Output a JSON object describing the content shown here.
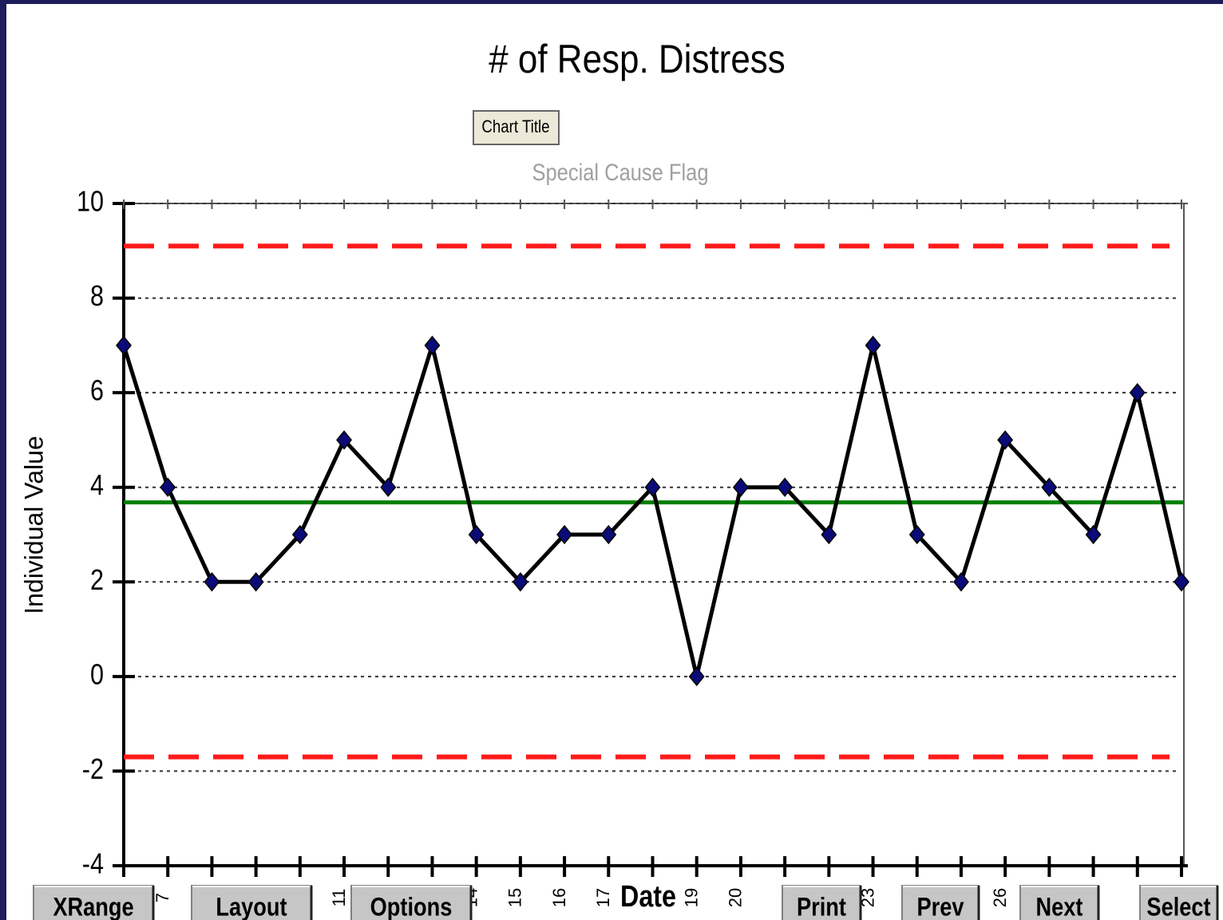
{
  "chart_data": {
    "type": "line",
    "title": "# of Resp. Distress",
    "title_button": "Chart Title",
    "flag_label": "Special Cause Flag",
    "y_label": "Individual Value",
    "x_label": "Date",
    "categories": [
      null,
      "7",
      null,
      null,
      null,
      "11",
      null,
      null,
      "14",
      "15",
      "16",
      "17",
      null,
      "19",
      "20",
      null,
      null,
      "23",
      null,
      null,
      "26",
      null,
      null,
      null,
      null
    ],
    "series": [
      {
        "color": "#000000",
        "marker_color": "#0a0a78",
        "values": [
          7,
          4,
          2,
          2,
          3,
          5,
          4,
          7,
          3,
          2,
          3,
          3,
          4,
          0,
          4,
          4,
          3,
          7,
          3,
          2,
          5,
          4,
          3,
          6,
          2
        ]
      }
    ],
    "reference_lines": [
      {
        "value": 9.1,
        "color": "#ff1a1a",
        "style": "dashed"
      },
      {
        "value": 3.68,
        "color": "#008000",
        "style": "solid"
      },
      {
        "value": -1.7,
        "color": "#ff1a1a",
        "style": "dashed"
      }
    ],
    "ylim": [
      -4,
      10
    ],
    "yticks": [
      -4,
      -2,
      0,
      2,
      4,
      6,
      8,
      10
    ],
    "grid": true
  },
  "buttons": [
    "XRange",
    "Layout",
    "Options",
    "Print",
    "Prev",
    "Next",
    "Select"
  ]
}
